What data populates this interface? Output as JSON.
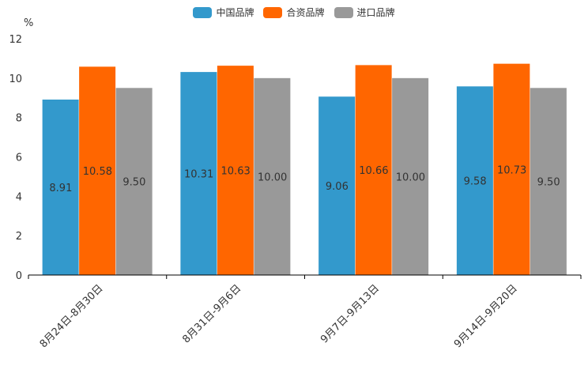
{
  "chart_data": {
    "type": "bar",
    "title": "",
    "ylabel": "%",
    "xlabel": "",
    "ylim": [
      0,
      12
    ],
    "yticks": [
      0,
      2,
      4,
      6,
      8,
      10,
      12
    ],
    "ytick_labels": [
      "0",
      "2",
      "4",
      "6",
      "8",
      "10",
      "12"
    ],
    "legend_position": "top-center",
    "grid": false,
    "categories": [
      "8月24日-8月30日",
      "8月31日-9月6日",
      "9月7日-9月13日",
      "9月14日-9月20日"
    ],
    "series": [
      {
        "name": "中国品牌",
        "color": "#3399cc",
        "values": [
          8.91,
          10.31,
          9.06,
          9.58
        ],
        "labels": [
          "8.91",
          "10.31",
          "9.06",
          "9.58"
        ]
      },
      {
        "name": "合资品牌",
        "color": "#ff6600",
        "values": [
          10.58,
          10.63,
          10.66,
          10.73
        ],
        "labels": [
          "10.58",
          "10.63",
          "10.66",
          "10.73"
        ]
      },
      {
        "name": "进口品牌",
        "color": "#999999",
        "values": [
          9.5,
          10.0,
          10.0,
          9.5
        ],
        "labels": [
          "9.50",
          "10.00",
          "10.00",
          "9.50"
        ]
      }
    ]
  }
}
